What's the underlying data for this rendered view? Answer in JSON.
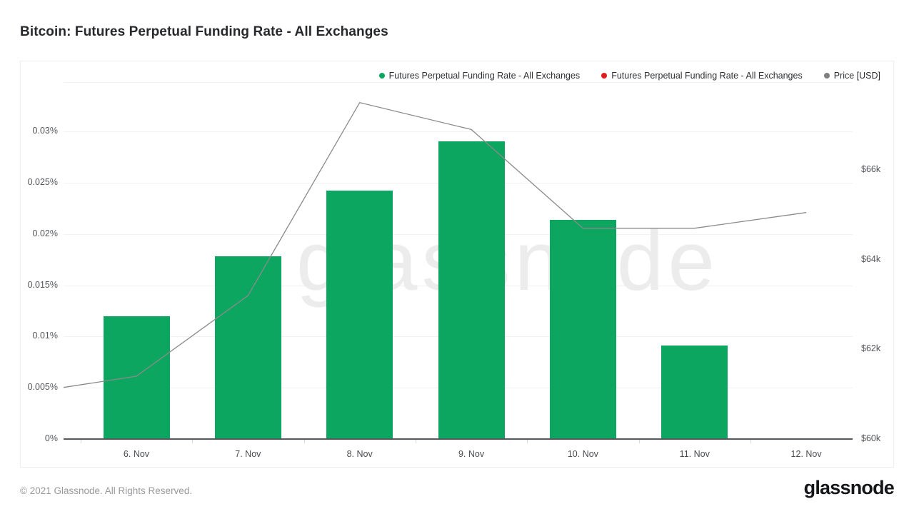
{
  "page": {
    "title": "Bitcoin: Futures Perpetual Funding Rate - All Exchanges",
    "footer": "© 2021 Glassnode. All Rights Reserved.",
    "brand": "glassnode",
    "watermark": "glassnode"
  },
  "legend": {
    "items": [
      {
        "label": "Futures Perpetual Funding Rate - All Exchanges",
        "color": "#0da661"
      },
      {
        "label": "Futures Perpetual Funding Rate - All Exchanges",
        "color": "#e11b1b"
      },
      {
        "label": "Price [USD]",
        "color": "#7d7f82"
      }
    ]
  },
  "chart_data": {
    "type": "bar+line",
    "title": "Bitcoin: Futures Perpetual Funding Rate - All Exchanges",
    "categories": [
      "6. Nov",
      "7. Nov",
      "8. Nov",
      "9. Nov",
      "10. Nov",
      "11. Nov",
      "12. Nov"
    ],
    "series": [
      {
        "name": "Futures Perpetual Funding Rate - All Exchanges",
        "type": "bar",
        "color": "#0da661",
        "axis": "left",
        "unit": "%",
        "values": [
          0.012,
          0.0178,
          0.0242,
          0.029,
          0.0214,
          0.0091,
          null
        ]
      },
      {
        "name": "Futures Perpetual Funding Rate - All Exchanges",
        "type": "bar",
        "color": "#e11b1b",
        "axis": "left",
        "unit": "%",
        "values": [
          null,
          null,
          null,
          null,
          null,
          null,
          null
        ]
      },
      {
        "name": "Price [USD]",
        "type": "line",
        "color": "#8a8a8a",
        "axis": "right",
        "unit": "USD",
        "edge_start_value": 61150,
        "values": [
          61400,
          63200,
          67500,
          66900,
          64700,
          64700,
          65050
        ]
      }
    ],
    "left_axis": {
      "ticks": [
        "0%",
        "0.005%",
        "0.01%",
        "0.015%",
        "0.02%",
        "0.025%",
        "0.03%"
      ],
      "tick_values": [
        0,
        0.005,
        0.01,
        0.015,
        0.02,
        0.025,
        0.03
      ],
      "min": 0,
      "max": 0.0348
    },
    "right_axis": {
      "ticks": [
        "$60k",
        "$62k",
        "$64k",
        "$66k"
      ],
      "tick_values": [
        60000,
        62000,
        64000,
        66000
      ],
      "min": 60000,
      "max": 67960
    },
    "grid": true,
    "legend_position": "top-right"
  }
}
